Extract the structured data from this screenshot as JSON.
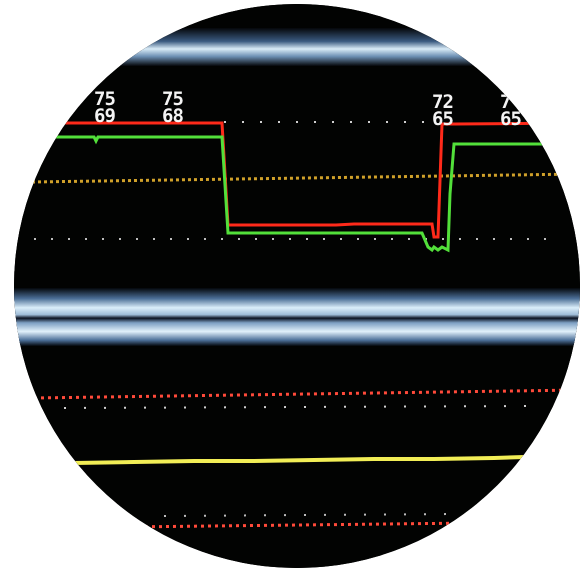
{
  "monitor": {
    "readings": [
      {
        "upper": "75",
        "lower": "69"
      },
      {
        "upper": "75",
        "lower": "68"
      },
      {
        "upper": "72",
        "lower": "65"
      },
      {
        "upper": "7",
        "lower": "65"
      }
    ]
  },
  "colors": {
    "screen": "#020302",
    "bezel_highlight": "#cfe4f2",
    "bezel_mid": "#5d7fa3",
    "trace_red": "#ff2a1a",
    "trace_green": "#52e03a",
    "trace_yellow": "#f2ee56",
    "dot_white": "#cfcfcf",
    "dot_red": "#ff4a3a"
  }
}
